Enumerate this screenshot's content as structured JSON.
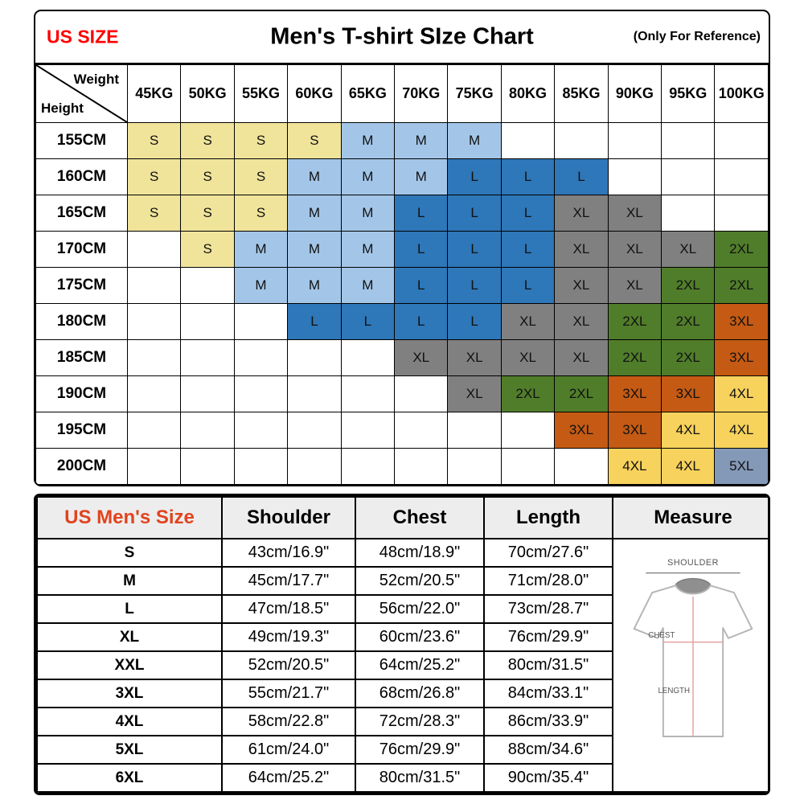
{
  "header": {
    "us_size": "US SIZE",
    "title": "Men's T-shirt SIze Chart",
    "note": "(Only For Reference)"
  },
  "corner": {
    "weight": "Weight",
    "height": "Height"
  },
  "colors": {
    "us_size_red": "#FF0000",
    "size_head_red": "#E2431E",
    "header_bg": "#EDEDED"
  },
  "diagram": {
    "shoulder": "SHOULDER",
    "chest": "CHEST",
    "length": "LENGTH"
  },
  "chart_data": [
    {
      "type": "heatmap",
      "title": "Men's T-shirt SIze Chart",
      "x_axis": "Weight",
      "y_axis": "Height",
      "x_labels": [
        "45KG",
        "50KG",
        "55KG",
        "60KG",
        "65KG",
        "70KG",
        "75KG",
        "80KG",
        "85KG",
        "90KG",
        "95KG",
        "100KG"
      ],
      "y_labels": [
        "155CM",
        "160CM",
        "165CM",
        "170CM",
        "175CM",
        "180CM",
        "185CM",
        "190CM",
        "195CM",
        "200CM"
      ],
      "values": [
        [
          "S",
          "S",
          "S",
          "S",
          "M",
          "M",
          "M",
          "",
          "",
          "",
          "",
          ""
        ],
        [
          "S",
          "S",
          "S",
          "M",
          "M",
          "M",
          "L",
          "L",
          "L",
          "",
          "",
          ""
        ],
        [
          "S",
          "S",
          "S",
          "M",
          "M",
          "L",
          "L",
          "L",
          "XL",
          "XL",
          "",
          ""
        ],
        [
          "",
          "S",
          "M",
          "M",
          "M",
          "L",
          "L",
          "L",
          "XL",
          "XL",
          "XL",
          "2XL"
        ],
        [
          "",
          "",
          "M",
          "M",
          "M",
          "L",
          "L",
          "L",
          "XL",
          "XL",
          "2XL",
          "2XL"
        ],
        [
          "",
          "",
          "",
          "L",
          "L",
          "L",
          "L",
          "XL",
          "XL",
          "2XL",
          "2XL",
          "3XL"
        ],
        [
          "",
          "",
          "",
          "",
          "",
          "XL",
          "XL",
          "XL",
          "XL",
          "2XL",
          "2XL",
          "3XL"
        ],
        [
          "",
          "",
          "",
          "",
          "",
          "",
          "XL",
          "2XL",
          "2XL",
          "3XL",
          "3XL",
          "4XL"
        ],
        [
          "",
          "",
          "",
          "",
          "",
          "",
          "",
          "",
          "3XL",
          "3XL",
          "4XL",
          "4XL"
        ],
        [
          "",
          "",
          "",
          "",
          "",
          "",
          "",
          "",
          "",
          "4XL",
          "4XL",
          "5XL"
        ]
      ],
      "size_colors": {
        "S": "#F0E49B",
        "M": "#A3C6E8",
        "L": "#2E77B8",
        "XL": "#808080",
        "2XL": "#507D2A",
        "3XL": "#C45A13",
        "4XL": "#F7D25C",
        "5XL": "#8499B7"
      }
    },
    {
      "type": "table",
      "columns": [
        "US Men's Size",
        "Shoulder",
        "Chest",
        "Length",
        "Measure"
      ],
      "rows": [
        [
          "S",
          "43cm/16.9\"",
          "48cm/18.9\"",
          "70cm/27.6\""
        ],
        [
          "M",
          "45cm/17.7\"",
          "52cm/20.5\"",
          "71cm/28.0\""
        ],
        [
          "L",
          "47cm/18.5\"",
          "56cm/22.0\"",
          "73cm/28.7\""
        ],
        [
          "XL",
          "49cm/19.3\"",
          "60cm/23.6\"",
          "76cm/29.9\""
        ],
        [
          "XXL",
          "52cm/20.5\"",
          "64cm/25.2\"",
          "80cm/31.5\""
        ],
        [
          "3XL",
          "55cm/21.7\"",
          "68cm/26.8\"",
          "84cm/33.1\""
        ],
        [
          "4XL",
          "58cm/22.8\"",
          "72cm/28.3\"",
          "86cm/33.9\""
        ],
        [
          "5XL",
          "61cm/24.0\"",
          "76cm/29.9\"",
          "88cm/34.6\""
        ],
        [
          "6XL",
          "64cm/25.2\"",
          "80cm/31.5\"",
          "90cm/35.4\""
        ]
      ]
    }
  ]
}
